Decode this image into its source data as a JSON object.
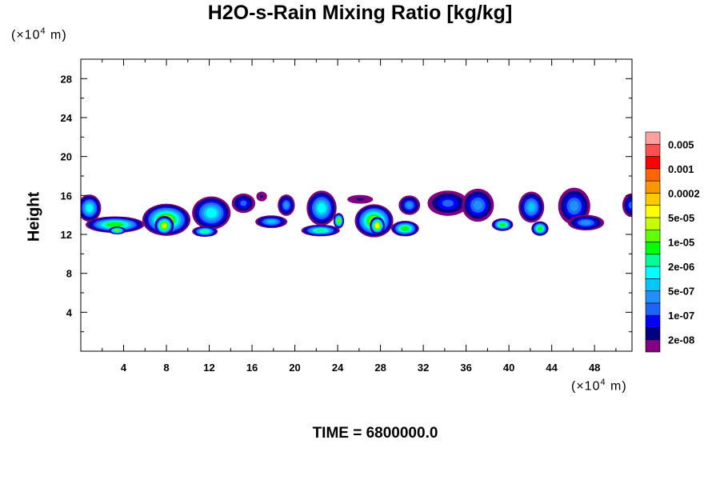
{
  "chart_data": {
    "type": "heatmap",
    "title": "H2O-s-Rain Mixing Ratio [kg/kg]",
    "ylabel": "Height",
    "xunit": {
      "prefix": "(×10",
      "exp": "4",
      "suffix": " m)"
    },
    "yunit": {
      "prefix": "(×10",
      "exp": "4",
      "suffix": " m)"
    },
    "xlim": [
      0,
      51.5
    ],
    "ylim": [
      0,
      30
    ],
    "x_ticks": [
      4,
      8,
      12,
      16,
      20,
      24,
      28,
      32,
      36,
      40,
      44,
      48
    ],
    "y_ticks": [
      4,
      8,
      12,
      16,
      20,
      24,
      28
    ],
    "footer": "TIME = 6800000.0",
    "colorbar": {
      "colors": [
        "#800080",
        "#000080",
        "#0000FF",
        "#1E64FF",
        "#1E90FF",
        "#00C8FF",
        "#00FFFF",
        "#00FF96",
        "#00FF00",
        "#64FF00",
        "#C8FF00",
        "#FFFF00",
        "#FFC800",
        "#FF9600",
        "#FF6400",
        "#FF0000",
        "#FF5050",
        "#FFA0A0"
      ],
      "labels": [
        "2e-08",
        "1e-07",
        "5e-07",
        "2e-06",
        "1e-05",
        "5e-05",
        "0.0002",
        "0.001",
        "0.005"
      ]
    },
    "cells": [
      {
        "x": 0.8,
        "y": 14.7,
        "w": 2.2,
        "h": 2.8,
        "level": 6
      },
      {
        "x": 3.2,
        "y": 13.0,
        "w": 5.5,
        "h": 1.7,
        "level": 8
      },
      {
        "x": 3.4,
        "y": 12.4,
        "w": 1.6,
        "h": 0.8,
        "level": 9
      },
      {
        "x": 8.0,
        "y": 13.5,
        "w": 4.5,
        "h": 3.3,
        "level": 9
      },
      {
        "x": 7.8,
        "y": 12.9,
        "w": 1.8,
        "h": 2.0,
        "level": 10
      },
      {
        "x": 12.2,
        "y": 14.2,
        "w": 3.6,
        "h": 3.4,
        "level": 6
      },
      {
        "x": 11.6,
        "y": 12.3,
        "w": 2.4,
        "h": 1.1,
        "level": 7
      },
      {
        "x": 15.2,
        "y": 15.2,
        "w": 2.2,
        "h": 2.0,
        "level": 3
      },
      {
        "x": 16.9,
        "y": 15.9,
        "w": 1.0,
        "h": 1.0,
        "level": 1
      },
      {
        "x": 19.2,
        "y": 15.0,
        "w": 1.6,
        "h": 2.2,
        "level": 4
      },
      {
        "x": 17.8,
        "y": 13.3,
        "w": 3.0,
        "h": 1.3,
        "level": 5
      },
      {
        "x": 22.5,
        "y": 14.7,
        "w": 2.8,
        "h": 3.6,
        "level": 6
      },
      {
        "x": 22.4,
        "y": 12.4,
        "w": 3.6,
        "h": 1.2,
        "level": 7
      },
      {
        "x": 24.1,
        "y": 13.4,
        "w": 1.0,
        "h": 1.6,
        "level": 9
      },
      {
        "x": 27.4,
        "y": 13.4,
        "w": 3.6,
        "h": 3.4,
        "level": 9
      },
      {
        "x": 27.7,
        "y": 12.9,
        "w": 1.4,
        "h": 1.8,
        "level": 11
      },
      {
        "x": 26.1,
        "y": 15.6,
        "w": 2.4,
        "h": 0.9,
        "level": 1
      },
      {
        "x": 30.3,
        "y": 12.6,
        "w": 2.6,
        "h": 1.6,
        "level": 8
      },
      {
        "x": 30.7,
        "y": 15.0,
        "w": 2.0,
        "h": 2.0,
        "level": 4
      },
      {
        "x": 34.3,
        "y": 15.2,
        "w": 3.8,
        "h": 2.6,
        "level": 3
      },
      {
        "x": 37.1,
        "y": 15.0,
        "w": 3.0,
        "h": 3.4,
        "level": 4
      },
      {
        "x": 39.4,
        "y": 13.0,
        "w": 2.0,
        "h": 1.3,
        "level": 8
      },
      {
        "x": 42.1,
        "y": 14.8,
        "w": 2.4,
        "h": 3.2,
        "level": 5
      },
      {
        "x": 42.9,
        "y": 12.6,
        "w": 1.6,
        "h": 1.5,
        "level": 8
      },
      {
        "x": 46.1,
        "y": 14.9,
        "w": 3.0,
        "h": 3.8,
        "level": 4
      },
      {
        "x": 47.2,
        "y": 13.2,
        "w": 3.4,
        "h": 1.6,
        "level": 4
      },
      {
        "x": 51.4,
        "y": 15.0,
        "w": 1.6,
        "h": 2.4,
        "level": 3
      }
    ]
  }
}
